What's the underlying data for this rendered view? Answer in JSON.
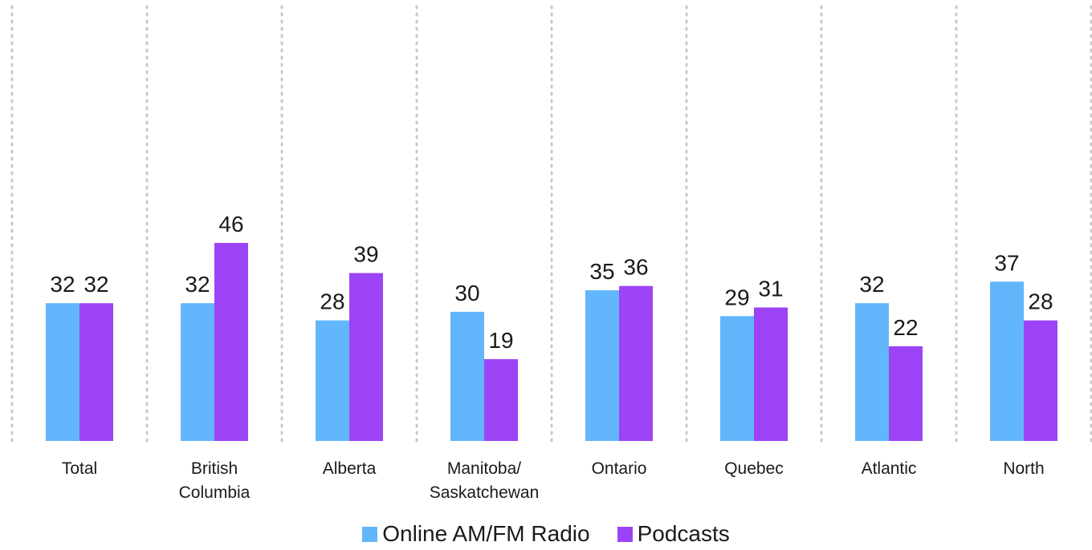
{
  "chart_data": {
    "type": "bar",
    "categories": [
      [
        "Total"
      ],
      [
        "British",
        "Columbia"
      ],
      [
        "Alberta"
      ],
      [
        "Manitoba/",
        "Saskatchewan"
      ],
      [
        "Ontario"
      ],
      [
        "Quebec"
      ],
      [
        "Atlantic"
      ],
      [
        "North"
      ]
    ],
    "series": [
      {
        "name": "Online AM/FM Radio",
        "color": "#62b6fb",
        "values": [
          32,
          32,
          28,
          30,
          35,
          29,
          32,
          37
        ]
      },
      {
        "name": "Podcasts",
        "color": "#9c44f5",
        "values": [
          32,
          46,
          39,
          19,
          36,
          31,
          22,
          28
        ]
      }
    ],
    "ylim": [
      0,
      50
    ],
    "grid": "dotted vertical separators between categories",
    "legend_position": "bottom-center"
  }
}
